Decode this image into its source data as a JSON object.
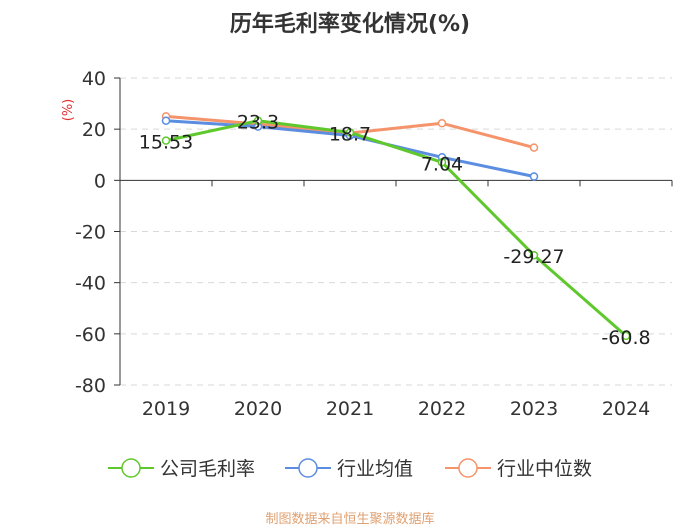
{
  "chart_data": {
    "type": "line",
    "title": "历年毛利率变化情况(%)",
    "ylabel": "(%)",
    "xlabel": "",
    "ylim": [
      -80,
      40
    ],
    "yticks": [
      40,
      20,
      0,
      -20,
      -40,
      -60,
      -80
    ],
    "categories": [
      "2019",
      "2020",
      "2021",
      "2022",
      "2023",
      "2024"
    ],
    "series": [
      {
        "name": "公司毛利率",
        "color": "#5ec82c",
        "values": [
          15.53,
          23.3,
          18.7,
          7.04,
          -29.27,
          -60.8
        ],
        "labels": [
          "15.53",
          "23.3",
          "18.7",
          "7.04",
          "-29.27",
          "-60.8"
        ]
      },
      {
        "name": "行业均值",
        "color": "#5b8de0",
        "values": [
          23.3,
          21.0,
          17.5,
          9.0,
          1.5,
          null
        ]
      },
      {
        "name": "行业中位数",
        "color": "#f5936a",
        "values": [
          25.0,
          22.0,
          18.5,
          22.3,
          12.8,
          null
        ]
      }
    ],
    "grid": true,
    "legend": "bottom"
  },
  "source_text": "制图数据来自恒生聚源数据库"
}
